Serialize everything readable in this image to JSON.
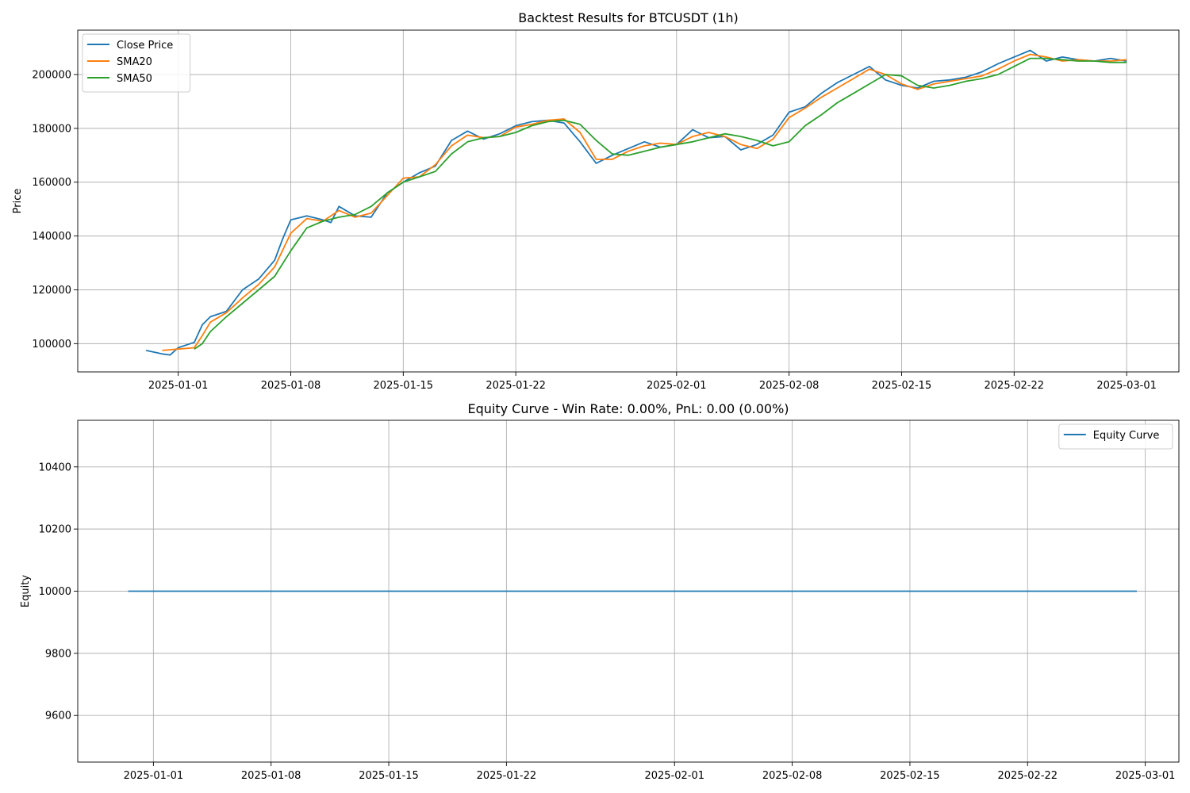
{
  "chart_data": [
    {
      "type": "line",
      "title": "Backtest Results for BTCUSDT (1h)",
      "xlabel": "",
      "ylabel": "Price",
      "x_range": [
        "2024-12-25T18:00",
        "2025-03-04T06:00"
      ],
      "ylim": [
        89500,
        216500
      ],
      "x_ticks": [
        "2025-01-01",
        "2025-01-08",
        "2025-01-15",
        "2025-01-22",
        "2025-02-01",
        "2025-02-08",
        "2025-02-15",
        "2025-02-22",
        "2025-03-01"
      ],
      "y_ticks": [
        100000,
        120000,
        140000,
        160000,
        180000,
        200000
      ],
      "grid": true,
      "legend_position": "top-left",
      "colors": {
        "Close Price": "#1f77b4",
        "SMA20": "#ff7f0e",
        "SMA50": "#2ca02c"
      },
      "series": [
        {
          "name": "Close Price",
          "x": [
            "2024-12-30",
            "2024-12-31",
            "2024-12-31T12:00",
            "2025-01-01",
            "2025-01-02",
            "2025-01-02T12:00",
            "2025-01-03",
            "2025-01-04",
            "2025-01-05",
            "2025-01-06",
            "2025-01-07",
            "2025-01-07T12:00",
            "2025-01-08",
            "2025-01-09",
            "2025-01-10",
            "2025-01-10T12:00",
            "2025-01-11",
            "2025-01-12",
            "2025-01-13",
            "2025-01-14",
            "2025-01-15",
            "2025-01-16",
            "2025-01-17",
            "2025-01-18",
            "2025-01-19",
            "2025-01-20",
            "2025-01-21",
            "2025-01-22",
            "2025-01-23",
            "2025-01-24",
            "2025-01-25",
            "2025-01-26",
            "2025-01-27",
            "2025-01-28",
            "2025-01-29",
            "2025-01-30",
            "2025-01-31",
            "2025-02-01",
            "2025-02-02",
            "2025-02-03",
            "2025-02-04",
            "2025-02-05",
            "2025-02-06",
            "2025-02-07",
            "2025-02-08",
            "2025-02-09",
            "2025-02-10",
            "2025-02-11",
            "2025-02-12",
            "2025-02-13",
            "2025-02-14",
            "2025-02-15",
            "2025-02-16",
            "2025-02-17",
            "2025-02-18",
            "2025-02-19",
            "2025-02-20",
            "2025-02-21",
            "2025-02-22",
            "2025-02-23",
            "2025-02-24",
            "2025-02-25",
            "2025-02-26",
            "2025-02-27",
            "2025-02-28",
            "2025-03-01"
          ],
          "y": [
            97500,
            96200,
            95800,
            98500,
            100500,
            107000,
            110000,
            112000,
            120000,
            124000,
            131000,
            139000,
            146000,
            147500,
            146000,
            145000,
            151000,
            147500,
            147000,
            156000,
            160000,
            163500,
            166000,
            175500,
            179000,
            176000,
            178000,
            181000,
            182500,
            183000,
            182000,
            175000,
            167000,
            170000,
            172500,
            175000,
            173000,
            174000,
            179500,
            176500,
            177000,
            172000,
            174000,
            177500,
            186000,
            188000,
            193000,
            197000,
            200000,
            203000,
            198000,
            196000,
            195000,
            197500,
            198000,
            199000,
            201000,
            204000,
            206500,
            209000,
            205000,
            206500,
            205500,
            205000,
            206000,
            205000
          ]
        },
        {
          "name": "SMA20",
          "x": [
            "2024-12-31",
            "2025-01-01",
            "2025-01-02",
            "2025-01-02T12:00",
            "2025-01-03",
            "2025-01-04",
            "2025-01-05",
            "2025-01-06",
            "2025-01-07",
            "2025-01-08",
            "2025-01-09",
            "2025-01-10",
            "2025-01-11",
            "2025-01-12",
            "2025-01-13",
            "2025-01-14",
            "2025-01-15",
            "2025-01-16",
            "2025-01-17",
            "2025-01-18",
            "2025-01-19",
            "2025-01-20",
            "2025-01-21",
            "2025-01-22",
            "2025-01-23",
            "2025-01-24",
            "2025-01-25",
            "2025-01-26",
            "2025-01-27",
            "2025-01-28",
            "2025-01-29",
            "2025-01-30",
            "2025-01-31",
            "2025-02-01",
            "2025-02-02",
            "2025-02-03",
            "2025-02-04",
            "2025-02-05",
            "2025-02-06",
            "2025-02-07",
            "2025-02-08",
            "2025-02-09",
            "2025-02-10",
            "2025-02-11",
            "2025-02-12",
            "2025-02-13",
            "2025-02-14",
            "2025-02-15",
            "2025-02-16",
            "2025-02-17",
            "2025-02-18",
            "2025-02-19",
            "2025-02-20",
            "2025-02-21",
            "2025-02-22",
            "2025-02-23",
            "2025-02-24",
            "2025-02-25",
            "2025-02-26",
            "2025-02-27",
            "2025-02-28",
            "2025-03-01"
          ],
          "y": [
            97500,
            98000,
            98500,
            103000,
            108000,
            111500,
            117000,
            122000,
            128500,
            141000,
            146500,
            145500,
            149500,
            147000,
            148500,
            155000,
            161500,
            162000,
            166500,
            173500,
            177500,
            176500,
            177000,
            180500,
            181500,
            183000,
            183500,
            178500,
            168500,
            168500,
            171500,
            173500,
            174500,
            174000,
            177000,
            178500,
            177000,
            174000,
            172500,
            176000,
            184000,
            187500,
            191500,
            195000,
            198500,
            202000,
            200000,
            196500,
            194500,
            196500,
            197500,
            198500,
            199500,
            202000,
            205000,
            207500,
            206500,
            205000,
            205500,
            205000,
            205000,
            205500
          ]
        },
        {
          "name": "SMA50",
          "x": [
            "2025-01-02",
            "2025-01-02T12:00",
            "2025-01-03",
            "2025-01-04",
            "2025-01-05",
            "2025-01-06",
            "2025-01-07",
            "2025-01-08",
            "2025-01-09",
            "2025-01-10",
            "2025-01-11",
            "2025-01-12",
            "2025-01-13",
            "2025-01-14",
            "2025-01-15",
            "2025-01-16",
            "2025-01-17",
            "2025-01-18",
            "2025-01-19",
            "2025-01-20",
            "2025-01-21",
            "2025-01-22",
            "2025-01-23",
            "2025-01-24",
            "2025-01-25",
            "2025-01-26",
            "2025-01-27",
            "2025-01-28",
            "2025-01-29",
            "2025-01-30",
            "2025-01-31",
            "2025-02-01",
            "2025-02-02",
            "2025-02-03",
            "2025-02-04",
            "2025-02-05",
            "2025-02-06",
            "2025-02-07",
            "2025-02-08",
            "2025-02-09",
            "2025-02-10",
            "2025-02-11",
            "2025-02-12",
            "2025-02-13",
            "2025-02-14",
            "2025-02-15",
            "2025-02-16",
            "2025-02-17",
            "2025-02-18",
            "2025-02-19",
            "2025-02-20",
            "2025-02-21",
            "2025-02-22",
            "2025-02-23",
            "2025-02-24",
            "2025-02-25",
            "2025-02-26",
            "2025-02-27",
            "2025-02-28",
            "2025-03-01"
          ],
          "y": [
            98000,
            100000,
            104500,
            110000,
            115000,
            120000,
            125000,
            134500,
            143000,
            145500,
            147000,
            148000,
            151000,
            156000,
            160000,
            162000,
            164000,
            170500,
            175000,
            176500,
            177000,
            178500,
            181000,
            182500,
            183000,
            181500,
            175500,
            170500,
            170000,
            171500,
            173000,
            174000,
            175000,
            176500,
            178000,
            177000,
            175500,
            173500,
            175000,
            181000,
            185000,
            189500,
            193000,
            196500,
            200000,
            199500,
            196000,
            195000,
            196000,
            197500,
            198500,
            200000,
            203000,
            206000,
            206000,
            205500,
            205000,
            205000,
            204500,
            204500
          ]
        }
      ]
    },
    {
      "type": "line",
      "title": "Equity Curve - Win Rate: 0.00%, PnL: 0.00 (0.00%)",
      "xlabel": "",
      "ylabel": "Equity",
      "x_range": [
        "2024-12-27T12:00",
        "2025-03-03"
      ],
      "ylim": [
        9450,
        10550
      ],
      "x_ticks": [
        "2025-01-01",
        "2025-01-08",
        "2025-01-15",
        "2025-01-22",
        "2025-02-01",
        "2025-02-08",
        "2025-02-15",
        "2025-02-22",
        "2025-03-01"
      ],
      "y_ticks": [
        9600,
        9800,
        10000,
        10200,
        10400
      ],
      "grid": true,
      "legend_position": "top-right",
      "colors": {
        "Equity Curve": "#1f77b4"
      },
      "series": [
        {
          "name": "Equity Curve",
          "x": [
            "2024-12-30T12:00",
            "2025-02-28T12:00"
          ],
          "y": [
            10000,
            10000
          ]
        }
      ]
    }
  ]
}
